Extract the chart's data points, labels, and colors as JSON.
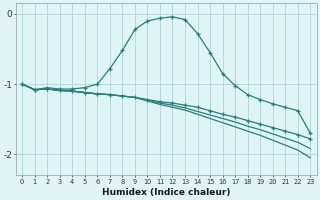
{
  "x": [
    0,
    1,
    2,
    3,
    4,
    5,
    6,
    7,
    8,
    9,
    10,
    11,
    12,
    13,
    14,
    15,
    16,
    17,
    18,
    19,
    20,
    21,
    22,
    23
  ],
  "line1": [
    -1.0,
    -1.08,
    -1.05,
    -1.07,
    -1.07,
    -1.05,
    -1.0,
    -0.78,
    -0.52,
    -0.22,
    -0.1,
    -0.06,
    -0.04,
    -0.08,
    -0.28,
    -0.55,
    -0.85,
    -1.02,
    -1.15,
    -1.22,
    -1.28,
    -1.33,
    -1.38,
    -1.7
  ],
  "line2": [
    -1.0,
    -1.08,
    -1.07,
    -1.09,
    -1.1,
    -1.12,
    -1.14,
    -1.15,
    -1.17,
    -1.19,
    -1.22,
    -1.25,
    -1.27,
    -1.3,
    -1.33,
    -1.38,
    -1.43,
    -1.47,
    -1.52,
    -1.57,
    -1.62,
    -1.67,
    -1.72,
    -1.78
  ],
  "line3": [
    -1.0,
    -1.08,
    -1.07,
    -1.09,
    -1.1,
    -1.12,
    -1.14,
    -1.15,
    -1.17,
    -1.19,
    -1.23,
    -1.27,
    -1.3,
    -1.34,
    -1.39,
    -1.44,
    -1.49,
    -1.54,
    -1.6,
    -1.65,
    -1.71,
    -1.77,
    -1.83,
    -1.92
  ],
  "line4": [
    -1.0,
    -1.08,
    -1.07,
    -1.09,
    -1.1,
    -1.12,
    -1.14,
    -1.15,
    -1.17,
    -1.19,
    -1.24,
    -1.29,
    -1.33,
    -1.37,
    -1.43,
    -1.49,
    -1.55,
    -1.61,
    -1.67,
    -1.73,
    -1.8,
    -1.87,
    -1.94,
    -2.05
  ],
  "color": "#2a7d7d",
  "bg_color": "#dff4f4",
  "grid_color": "#b8d8d8",
  "xlabel": "Humidex (Indice chaleur)",
  "ylim": [
    -2.3,
    0.15
  ],
  "yticks": [
    0,
    -1,
    -2
  ],
  "xlim": [
    -0.5,
    23.5
  ],
  "xtick_labels": [
    "0",
    "1",
    "2",
    "3",
    "4",
    "5",
    "6",
    "7",
    "8",
    "9",
    "10",
    "11",
    "12",
    "13",
    "14",
    "15",
    "16",
    "17",
    "18",
    "19",
    "20",
    "21",
    "22",
    "23"
  ]
}
